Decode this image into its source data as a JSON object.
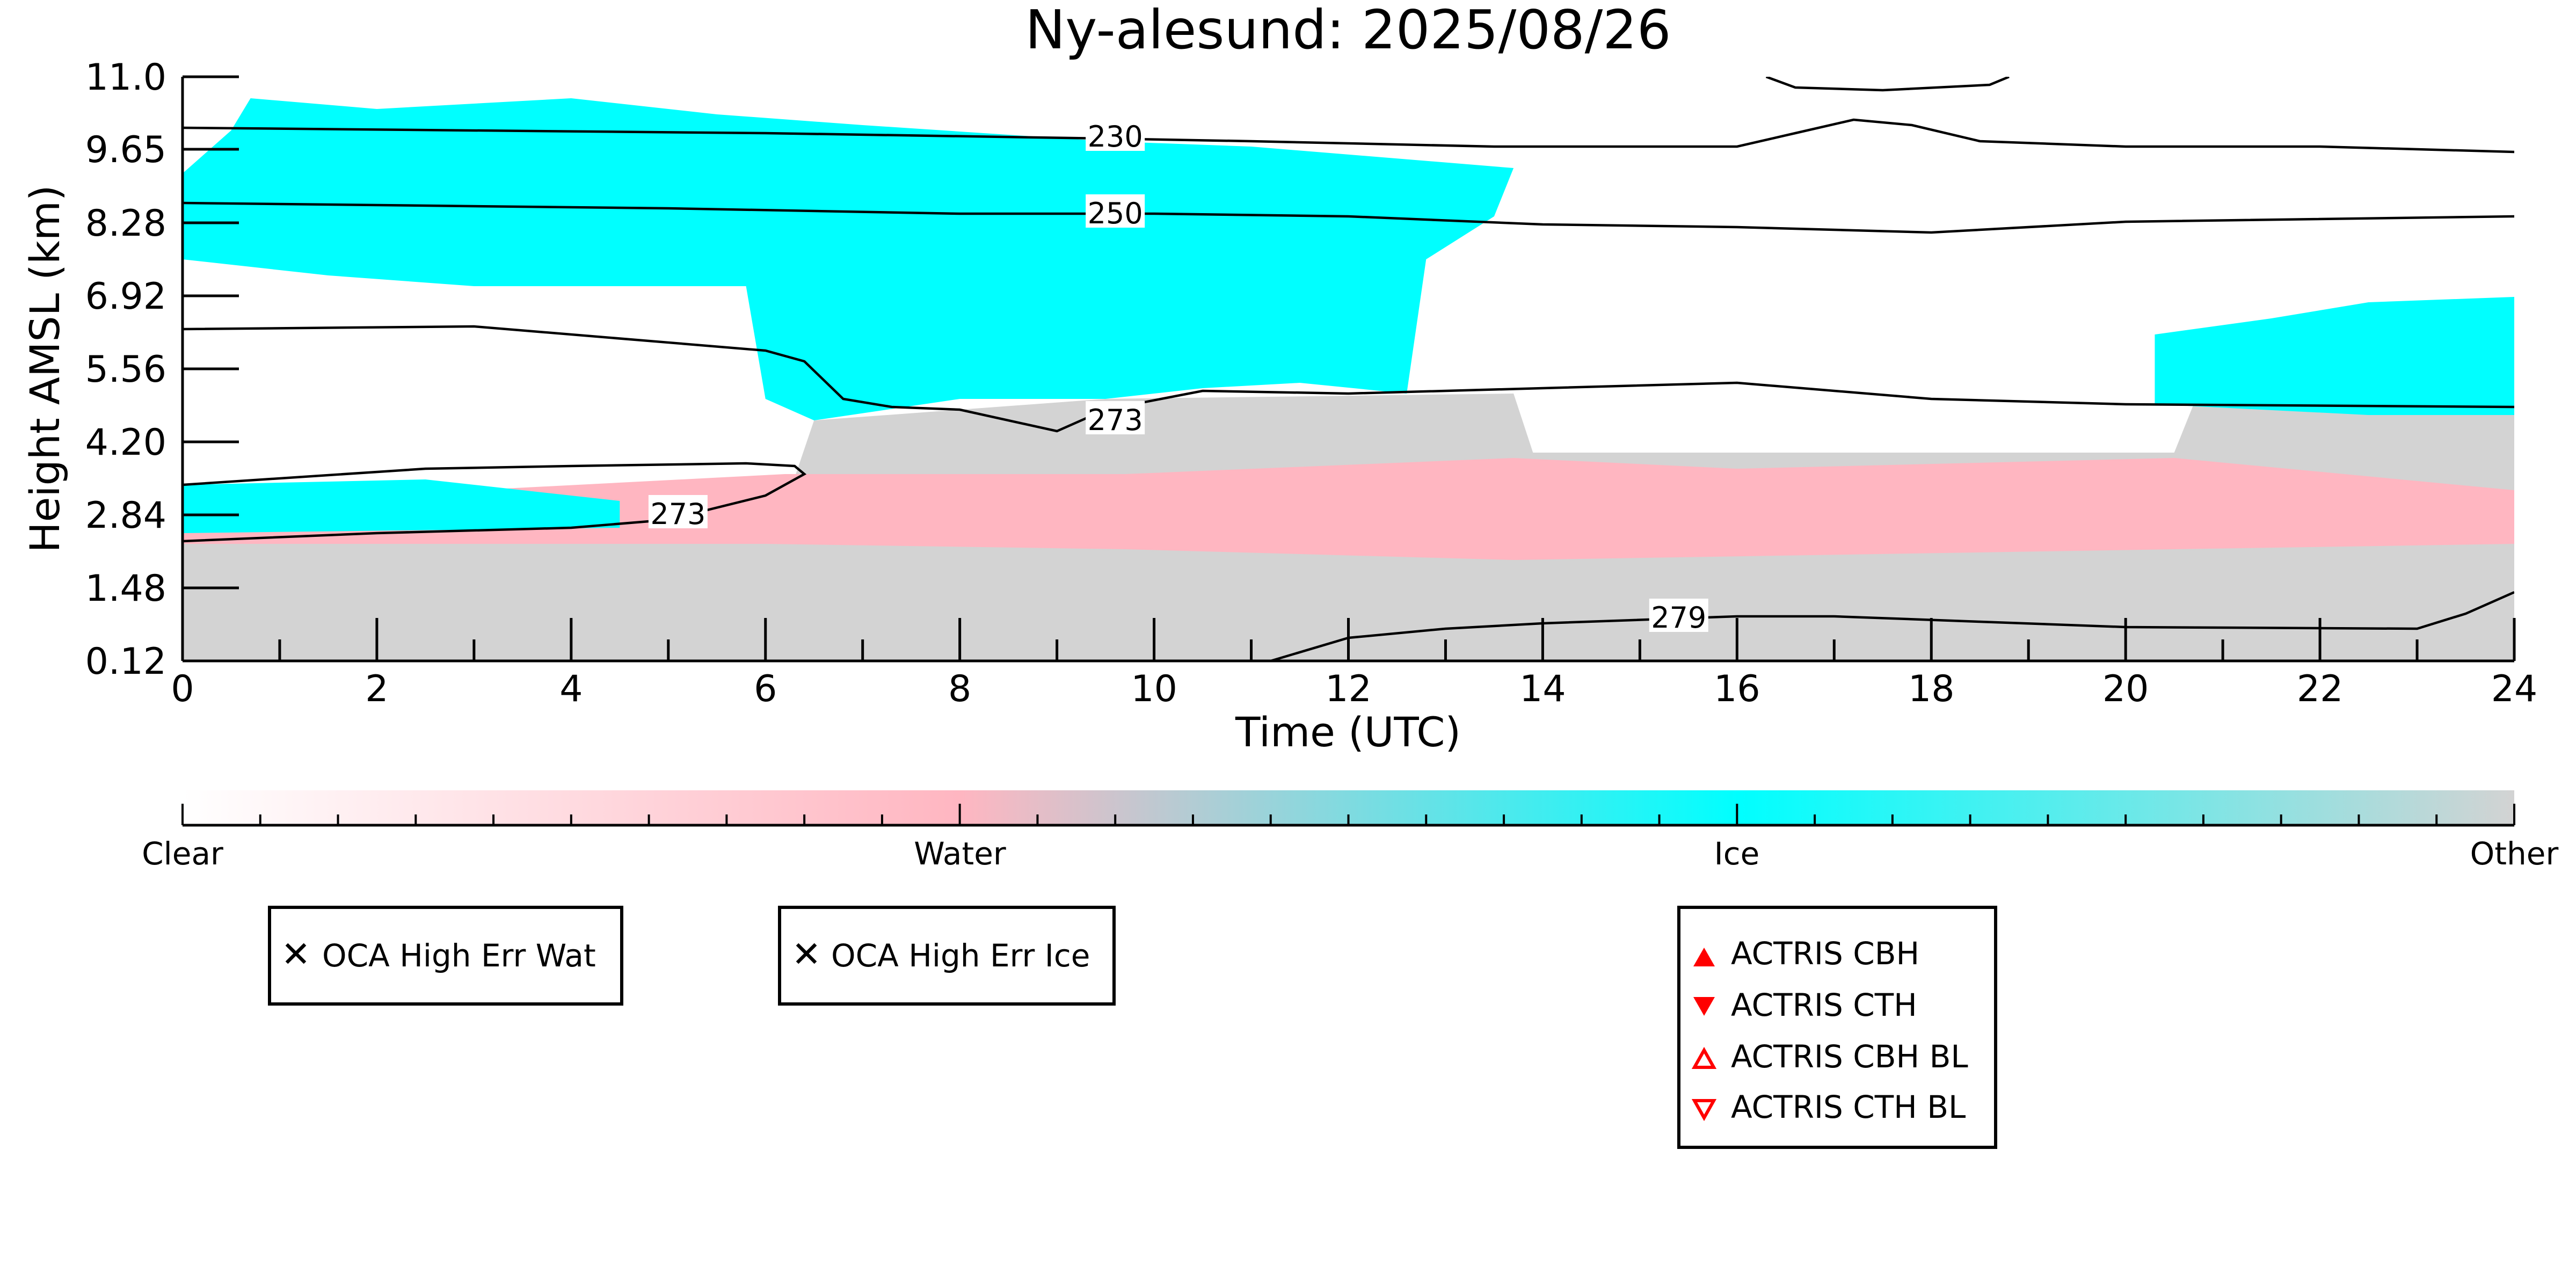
{
  "chart_data": {
    "type": "heatmap",
    "title": "Ny-alesund: 2025/08/26",
    "xlabel": "Time (UTC)",
    "ylabel": "Height AMSL (km)",
    "xlim": [
      0,
      24
    ],
    "ylim": [
      0.12,
      11.0
    ],
    "x_ticks": [
      "0",
      "2",
      "4",
      "6",
      "8",
      "10",
      "12",
      "14",
      "16",
      "18",
      "20",
      "22",
      "24"
    ],
    "y_ticks": [
      "0.12",
      "1.48",
      "2.84",
      "4.20",
      "5.56",
      "6.92",
      "8.28",
      "9.65",
      "11.0"
    ],
    "categories": [
      "Clear",
      "Water",
      "Ice",
      "Other"
    ],
    "category_colors": {
      "Clear": "#ffffff",
      "Water": "#ffb6c1",
      "Ice": "#00ffff",
      "Other": "#d3d3d3"
    },
    "regions": [
      {
        "category": "Other",
        "x": [
          0,
          24
        ],
        "y_bottom": 0.12,
        "top": [
          [
            0,
            3.0
          ],
          [
            6.2,
            3.0
          ],
          [
            6.5,
            4.6
          ],
          [
            9.5,
            5.0
          ],
          [
            13.7,
            5.1
          ],
          [
            13.9,
            4.0
          ],
          [
            20.5,
            4.0
          ],
          [
            20.7,
            4.9
          ],
          [
            24,
            4.9
          ]
        ]
      },
      {
        "category": "Water",
        "x_from": 0,
        "x_to": 24,
        "polygon": [
          [
            0,
            2.3
          ],
          [
            6,
            2.3
          ],
          [
            9.7,
            2.2
          ],
          [
            13.7,
            2.0
          ],
          [
            20.5,
            2.2
          ],
          [
            24,
            2.3
          ],
          [
            24,
            3.3
          ],
          [
            20.5,
            3.9
          ],
          [
            16,
            3.7
          ],
          [
            13.7,
            3.9
          ],
          [
            9.7,
            3.6
          ],
          [
            6.2,
            3.6
          ],
          [
            3,
            3.3
          ],
          [
            0,
            3.3
          ]
        ]
      },
      {
        "category": "Ice",
        "polygon": [
          [
            0.5,
            10.0
          ],
          [
            0.7,
            10.6
          ],
          [
            2,
            10.4
          ],
          [
            4,
            10.6
          ],
          [
            5.5,
            10.3
          ],
          [
            7,
            10.1
          ],
          [
            9.5,
            9.8
          ],
          [
            11,
            9.7
          ],
          [
            13.7,
            9.3
          ],
          [
            13.5,
            8.4
          ],
          [
            12.8,
            7.6
          ],
          [
            12.6,
            5.1
          ],
          [
            11.5,
            5.3
          ],
          [
            10.5,
            5.2
          ],
          [
            9.5,
            5.0
          ],
          [
            8,
            5.0
          ],
          [
            6.5,
            4.6
          ],
          [
            6,
            5.0
          ],
          [
            5.8,
            7.1
          ],
          [
            3,
            7.1
          ],
          [
            1.5,
            7.3
          ],
          [
            0,
            7.6
          ],
          [
            0,
            9.2
          ]
        ]
      },
      {
        "category": "Ice",
        "polygon": [
          [
            0,
            2.5
          ],
          [
            4.5,
            2.6
          ],
          [
            4.5,
            3.1
          ],
          [
            2.5,
            3.5
          ],
          [
            0,
            3.4
          ]
        ]
      },
      {
        "category": "Ice",
        "polygon": [
          [
            20.3,
            4.9
          ],
          [
            20.3,
            6.2
          ],
          [
            21.5,
            6.5
          ],
          [
            22.5,
            6.8
          ],
          [
            24,
            6.9
          ],
          [
            24,
            4.7
          ],
          [
            22.5,
            4.7
          ]
        ]
      }
    ],
    "contours": [
      {
        "level": "230",
        "points": [
          [
            0,
            10.05
          ],
          [
            6,
            9.95
          ],
          [
            9.5,
            9.85
          ],
          [
            11,
            9.8
          ],
          [
            13.5,
            9.7
          ],
          [
            16,
            9.7
          ],
          [
            16.6,
            9.95
          ],
          [
            17.2,
            10.2
          ],
          [
            17.8,
            10.1
          ],
          [
            18.5,
            9.8
          ],
          [
            20,
            9.7
          ],
          [
            22,
            9.7
          ],
          [
            24,
            9.6
          ]
        ]
      },
      {
        "level": "230",
        "points": [
          [
            16.3,
            11.0
          ],
          [
            16.6,
            10.8
          ],
          [
            17.5,
            10.75
          ],
          [
            18.6,
            10.85
          ],
          [
            18.8,
            11.0
          ]
        ]
      },
      {
        "level": "250",
        "points": [
          [
            0,
            8.65
          ],
          [
            5,
            8.55
          ],
          [
            8,
            8.45
          ],
          [
            10,
            8.45
          ],
          [
            12,
            8.4
          ],
          [
            14,
            8.25
          ],
          [
            16,
            8.2
          ],
          [
            18,
            8.1
          ],
          [
            20,
            8.3
          ],
          [
            24,
            8.4
          ]
        ]
      },
      {
        "level": "273",
        "points": [
          [
            0,
            6.3
          ],
          [
            3,
            6.35
          ],
          [
            6,
            5.9
          ],
          [
            6.4,
            5.7
          ],
          [
            6.8,
            5.0
          ],
          [
            7.3,
            4.85
          ],
          [
            8,
            4.8
          ],
          [
            9,
            4.4
          ],
          [
            9.5,
            4.8
          ],
          [
            10.5,
            5.15
          ],
          [
            12,
            5.1
          ],
          [
            14,
            5.2
          ],
          [
            16,
            5.3
          ],
          [
            18,
            5.0
          ],
          [
            20,
            4.9
          ],
          [
            24,
            4.85
          ]
        ]
      },
      {
        "level": "273",
        "points": [
          [
            0,
            2.35
          ],
          [
            2,
            2.5
          ],
          [
            4,
            2.6
          ],
          [
            5,
            2.75
          ],
          [
            6,
            3.2
          ],
          [
            6.4,
            3.6
          ],
          [
            6.3,
            3.75
          ],
          [
            5.8,
            3.8
          ],
          [
            4,
            3.75
          ],
          [
            2.5,
            3.7
          ],
          [
            0,
            3.4
          ]
        ]
      },
      {
        "level": "279",
        "points": [
          [
            11.2,
            0.12
          ],
          [
            12,
            0.55
          ],
          [
            13,
            0.72
          ],
          [
            14,
            0.82
          ],
          [
            16,
            0.95
          ],
          [
            17,
            0.95
          ],
          [
            18.5,
            0.85
          ],
          [
            20,
            0.75
          ],
          [
            23,
            0.72
          ],
          [
            23.5,
            1.0
          ],
          [
            24,
            1.4
          ]
        ]
      }
    ],
    "contour_label_positions": [
      {
        "text": "230",
        "x": 9.6,
        "y": 9.88
      },
      {
        "text": "250",
        "x": 9.6,
        "y": 8.45
      },
      {
        "text": "273",
        "x": 9.6,
        "y": 4.6
      },
      {
        "text": "273",
        "x": 5.1,
        "y": 2.85
      },
      {
        "text": "279",
        "x": 15.4,
        "y": 0.92
      }
    ]
  },
  "colorbar": {
    "labels": [
      "Clear",
      "Water",
      "Ice",
      "Other"
    ],
    "stops": [
      "#ffffff",
      "#ffb6c1",
      "#00ffff",
      "#d3d3d3"
    ]
  },
  "legends": {
    "oca_water": {
      "label": "OCA High Err Wat",
      "color": "#2ecc2e"
    },
    "oca_ice": {
      "label": "OCA High Err Ice",
      "color": "#0000ff"
    },
    "actris": [
      {
        "label": "ACTRIS CBH",
        "marker": "triangle-up-filled",
        "color": "#ff0000"
      },
      {
        "label": "ACTRIS CTH",
        "marker": "triangle-down-filled",
        "color": "#ff0000"
      },
      {
        "label": "ACTRIS CBH BL",
        "marker": "triangle-up-open",
        "color": "#ff0000"
      },
      {
        "label": "ACTRIS CTH BL",
        "marker": "triangle-down-open",
        "color": "#ff0000"
      }
    ]
  }
}
